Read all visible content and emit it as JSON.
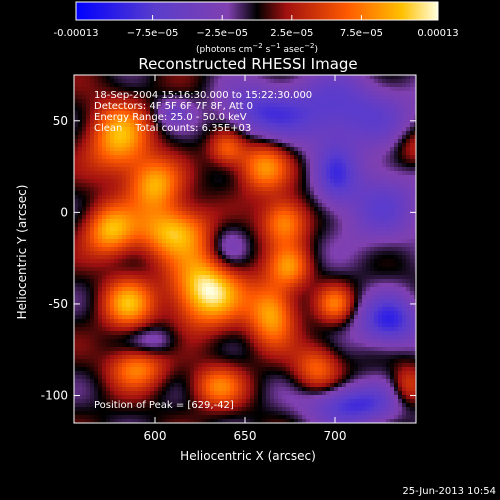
{
  "chart_data": {
    "type": "heatmap",
    "title": "Reconstructed RHESSI Image",
    "xlabel": "Heliocentric X (arcsec)",
    "ylabel": "Heliocentric Y (arcsec)",
    "xlim": [
      555,
      745
    ],
    "ylim": [
      -115,
      75
    ],
    "x_ticks": [
      600,
      650,
      700
    ],
    "y_ticks": [
      50,
      0,
      -50,
      -100
    ],
    "colorbar": {
      "min": -0.00013,
      "max": 0.00013,
      "tick_labels": [
        "-0.00013",
        "−7.5e−05",
        "−2.5e−05",
        "2.5e−05",
        "7.5e−05",
        "0.00013"
      ],
      "tick_values": [
        -0.00013,
        -7.5e-05,
        -2.5e-05,
        2.5e-05,
        7.5e-05,
        0.00013
      ],
      "unit_prefix": "(photons cm",
      "unit_exp1": "−2",
      "unit_mid": " s",
      "unit_exp2": "−1",
      "unit_mid2": " asec",
      "unit_exp3": "−2",
      "unit_suffix": ")"
    },
    "info_lines": [
      "18-Sep-2004 15:16:30.000 to 15:22:30.000",
      "Detectors: 4F 5F 6F 7F 8F, Att 0",
      "Energy Range: 25.0 - 50.0 keV",
      "Clean    Total counts: 6.35E+03"
    ],
    "peak_label": "Position of Peak = [629,-42]",
    "peak": {
      "x": 629,
      "y": -42
    },
    "blobs": [
      {
        "x": 629,
        "y": -42,
        "sx": 14,
        "sy": 14,
        "a": 1.0
      },
      {
        "x": 610,
        "y": -10,
        "sx": 14,
        "sy": 10,
        "a": 0.8
      },
      {
        "x": 580,
        "y": 40,
        "sx": 12,
        "sy": 14,
        "a": 0.75
      },
      {
        "x": 600,
        "y": 15,
        "sx": 10,
        "sy": 10,
        "a": 0.7
      },
      {
        "x": 575,
        "y": -10,
        "sx": 10,
        "sy": 10,
        "a": 0.75
      },
      {
        "x": 585,
        "y": -50,
        "sx": 10,
        "sy": 10,
        "a": 0.7
      },
      {
        "x": 665,
        "y": -55,
        "sx": 9,
        "sy": 12,
        "a": 0.75
      },
      {
        "x": 672,
        "y": -5,
        "sx": 9,
        "sy": 9,
        "a": 0.7
      },
      {
        "x": 660,
        "y": 25,
        "sx": 10,
        "sy": 10,
        "a": 0.65
      },
      {
        "x": 675,
        "y": -30,
        "sx": 8,
        "sy": 8,
        "a": 0.55
      },
      {
        "x": 700,
        "y": -50,
        "sx": 7,
        "sy": 7,
        "a": 0.5
      },
      {
        "x": 590,
        "y": -85,
        "sx": 11,
        "sy": 8,
        "a": 0.6
      },
      {
        "x": 635,
        "y": -95,
        "sx": 10,
        "sy": 8,
        "a": 0.55
      },
      {
        "x": 690,
        "y": -85,
        "sx": 9,
        "sy": 9,
        "a": 0.5
      },
      {
        "x": 640,
        "y": 35,
        "sx": 7,
        "sy": 7,
        "a": 0.5
      },
      {
        "x": 700,
        "y": 55,
        "sx": 30,
        "sy": 14,
        "a": -0.6
      },
      {
        "x": 725,
        "y": 5,
        "sx": 18,
        "sy": 18,
        "a": -0.45
      },
      {
        "x": 730,
        "y": -60,
        "sx": 12,
        "sy": 10,
        "a": -0.75
      },
      {
        "x": 710,
        "y": -105,
        "sx": 18,
        "sy": 8,
        "a": -0.7
      },
      {
        "x": 655,
        "y": 55,
        "sx": 14,
        "sy": 10,
        "a": -0.4
      },
      {
        "x": 640,
        "y": -20,
        "sx": 8,
        "sy": 10,
        "a": -0.35
      },
      {
        "x": 600,
        "y": -70,
        "sx": 10,
        "sy": 6,
        "a": -0.3
      },
      {
        "x": 700,
        "y": 20,
        "sx": 8,
        "sy": 12,
        "a": -0.45
      },
      {
        "x": 610,
        "y": 55,
        "sx": 8,
        "sy": 6,
        "a": -0.3
      },
      {
        "x": 740,
        "y": -95,
        "sx": 6,
        "sy": 8,
        "a": 0.4
      },
      {
        "x": 745,
        "y": 35,
        "sx": 8,
        "sy": 8,
        "a": 0.35
      }
    ]
  },
  "footer": {
    "date": "25-Jun-2013 10:54"
  }
}
